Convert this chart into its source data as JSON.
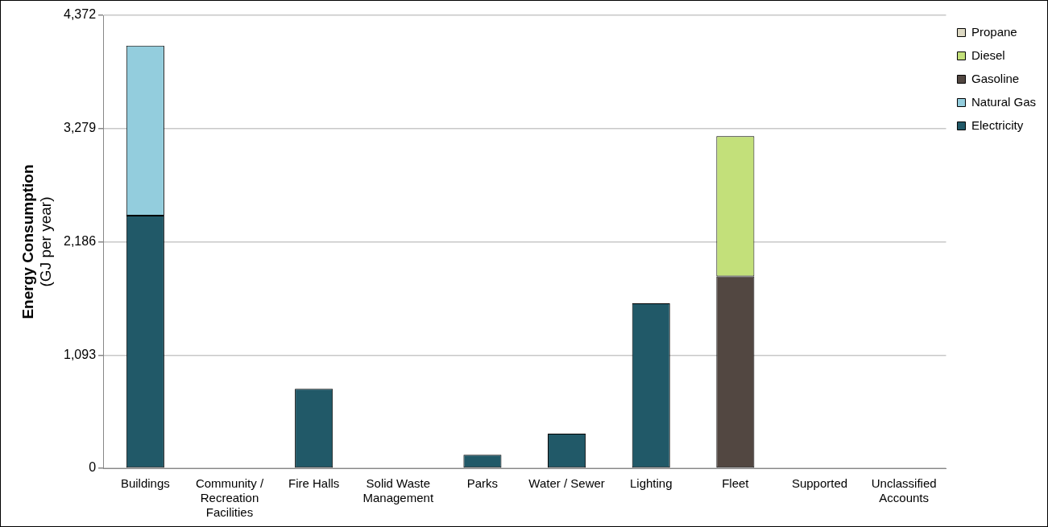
{
  "chart_data": {
    "type": "bar",
    "stacked": true,
    "ylabel": "Energy Consumption (GJ per year)",
    "categories": [
      "Buildings",
      "Community / Recreation Facilities",
      "Fire Halls",
      "Solid Waste Management",
      "Parks",
      "Water / Sewer",
      "Lighting",
      "Fleet",
      "Supported",
      "Unclassified Accounts"
    ],
    "series": [
      {
        "name": "Electricity",
        "color": "#215968",
        "values": [
          2439,
          0,
          767,
          0,
          131,
          334,
          1591,
          0,
          0,
          0
        ]
      },
      {
        "name": "Natural Gas",
        "color": "#93cddd",
        "values": [
          1639,
          0,
          0,
          0,
          0,
          0,
          0,
          0,
          0,
          0
        ]
      },
      {
        "name": "Gasoline",
        "color": "#524741",
        "values": [
          0,
          0,
          0,
          0,
          0,
          0,
          0,
          1852,
          0,
          0
        ]
      },
      {
        "name": "Diesel",
        "color": "#c3e07a",
        "values": [
          0,
          0,
          0,
          0,
          0,
          0,
          0,
          1354,
          0,
          0
        ]
      },
      {
        "name": "Propane",
        "color": "#ddd9c3",
        "values": [
          0,
          0,
          0,
          0,
          0,
          0,
          0,
          0,
          0,
          0
        ]
      }
    ],
    "ylim": [
      0,
      4372
    ],
    "yticks": [
      {
        "value": 0,
        "label": "0"
      },
      {
        "value": 1093,
        "label": "1,093"
      },
      {
        "value": 2186,
        "label": "2,186"
      },
      {
        "value": 3279,
        "label": "3,279"
      },
      {
        "value": 4372,
        "label": "4,372"
      }
    ],
    "grid": "y",
    "legend": "top right"
  }
}
